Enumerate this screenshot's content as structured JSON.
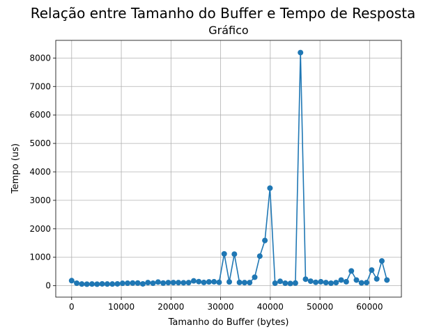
{
  "chart_data": {
    "type": "line",
    "suptitle": "Relação entre Tamanho do Buffer e Tempo de Resposta",
    "title": "Gráfico",
    "xlabel": "Tamanho do Buffer (bytes)",
    "ylabel": "Tempo (us)",
    "xlim": [
      -3200,
      66400
    ],
    "ylim": [
      -400,
      8620
    ],
    "xticks": [
      0,
      10000,
      20000,
      30000,
      40000,
      50000,
      60000
    ],
    "yticks": [
      0,
      1000,
      2000,
      3000,
      4000,
      5000,
      6000,
      7000,
      8000
    ],
    "grid": true,
    "color": "#1f77b4",
    "series": [
      {
        "marker": "circle",
        "x": [
          0,
          1024,
          2048,
          3072,
          4096,
          5120,
          6144,
          7168,
          8192,
          9216,
          10240,
          11264,
          12288,
          13312,
          14336,
          15360,
          16384,
          17408,
          18432,
          19456,
          20480,
          21504,
          22528,
          23552,
          24576,
          25600,
          26624,
          27648,
          28672,
          29696,
          30720,
          31744,
          32768,
          33792,
          34816,
          35840,
          36864,
          37888,
          38912,
          39936,
          40960,
          41984,
          43008,
          44032,
          45056,
          46080,
          47104,
          48128,
          49152,
          50176,
          51200,
          52224,
          53248,
          54272,
          55296,
          56320,
          57344,
          58368,
          59392,
          60416,
          61440,
          62464,
          63488
        ],
        "y": [
          180,
          90,
          60,
          55,
          60,
          55,
          65,
          60,
          60,
          65,
          85,
          90,
          95,
          95,
          65,
          110,
          90,
          130,
          95,
          110,
          110,
          110,
          105,
          110,
          170,
          145,
          115,
          135,
          140,
          120,
          1120,
          135,
          1110,
          115,
          110,
          110,
          300,
          1040,
          1590,
          3430,
          90,
          155,
          90,
          80,
          95,
          8190,
          230,
          160,
          120,
          140,
          110,
          90,
          110,
          200,
          140,
          520,
          200,
          100,
          110,
          550,
          240,
          870,
          200
        ]
      }
    ]
  }
}
